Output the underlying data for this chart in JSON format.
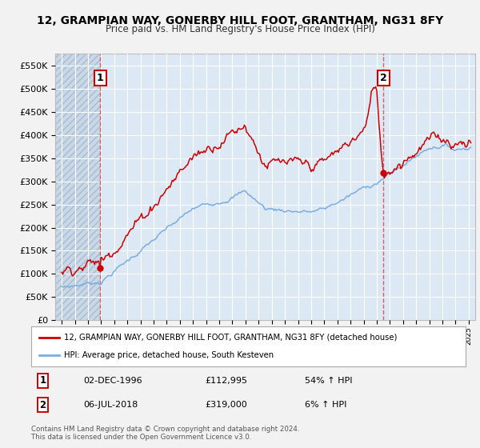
{
  "title": "12, GRAMPIAN WAY, GONERBY HILL FOOT, GRANTHAM, NG31 8FY",
  "subtitle": "Price paid vs. HM Land Registry's House Price Index (HPI)",
  "legend_label_red": "12, GRAMPIAN WAY, GONERBY HILL FOOT, GRANTHAM, NG31 8FY (detached house)",
  "legend_label_blue": "HPI: Average price, detached house, South Kesteven",
  "sale1_date_label": "02-DEC-1996",
  "sale1_year": 1996.92,
  "sale1_price": 112995,
  "sale1_hpi_pct": "54% ↑ HPI",
  "sale1_num": "1",
  "sale2_date_label": "06-JUL-2018",
  "sale2_year": 2018.52,
  "sale2_price": 319000,
  "sale2_hpi_pct": "6% ↑ HPI",
  "sale2_num": "2",
  "footer1": "Contains HM Land Registry data © Crown copyright and database right 2024.",
  "footer2": "This data is licensed under the Open Government Licence v3.0.",
  "ylim_min": 0,
  "ylim_max": 575000,
  "xmin": 1993.5,
  "xmax": 2025.5,
  "red_color": "#cc0000",
  "blue_color": "#7aade0",
  "plot_bg_color": "#dce9f5",
  "grid_color": "#ffffff",
  "dashed_color": "#dd4444",
  "hatch_color": "#c8d8e8"
}
